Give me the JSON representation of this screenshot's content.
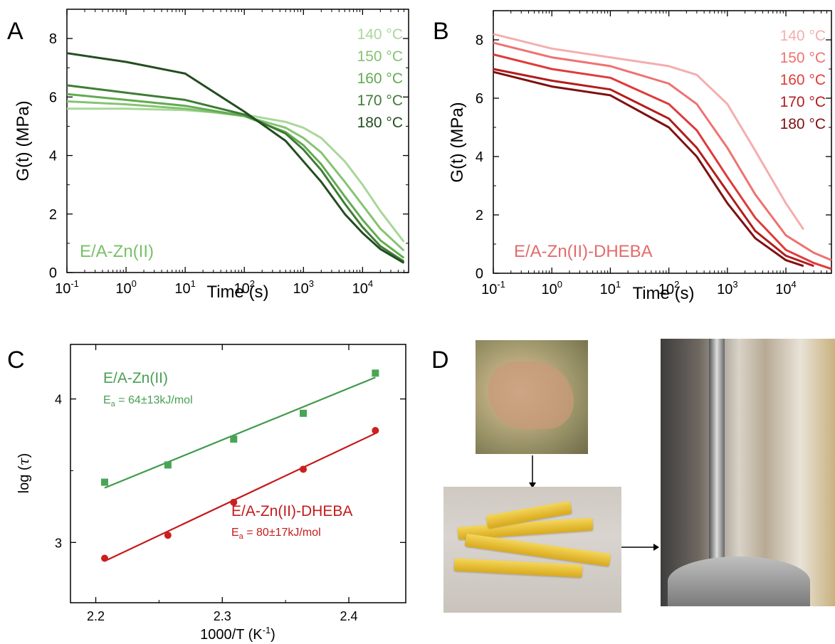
{
  "panels": {
    "A": {
      "letter": "A",
      "sample_label": "E/A-Zn(II)",
      "xlabel": "Time (s)",
      "ylabel": "G(t) (MPa)"
    },
    "B": {
      "letter": "B",
      "sample_label": "E/A-Zn(II)-DHEBA",
      "xlabel": "Time (s)",
      "ylabel": "G(t) (MPa)"
    },
    "C": {
      "letter": "C",
      "xlabel": "1000/T (K",
      "xlabel_sup": "-1",
      "xlabel_end": ")",
      "ylabel_pre": "log (",
      "ylabel_sym": "τ",
      "ylabel_post": ")",
      "annot1_name": "E/A-Zn(II)",
      "annot1_ea": "E",
      "annot1_sub": "a",
      "annot1_val": " = 64±13kJ/mol",
      "annot2_name": "E/A-Zn(II)-DHEBA",
      "annot2_ea": "E",
      "annot2_sub": "a",
      "annot2_val": " = 80±17kJ/mol"
    },
    "D": {
      "letter": "D"
    }
  },
  "colors": {
    "A": [
      "#a9d79a",
      "#84c471",
      "#62ab52",
      "#3f7d35",
      "#244d22"
    ],
    "B": [
      "#f4aeae",
      "#ee7272",
      "#df3b3b",
      "#b21d1d",
      "#7f1010"
    ],
    "green_fit": "#3f9a4a",
    "red_fit": "#c41a1a"
  },
  "chart_data": [
    {
      "panel": "A",
      "type": "line",
      "xscale": "log",
      "xlim": [
        0.1,
        60000
      ],
      "ylim": [
        0,
        9
      ],
      "xticks": [
        0.1,
        1,
        10,
        100,
        1000,
        10000
      ],
      "xtick_labels": [
        {
          "b": "10",
          "e": "-1"
        },
        {
          "b": "10",
          "e": "0"
        },
        {
          "b": "10",
          "e": "1"
        },
        {
          "b": "10",
          "e": "2"
        },
        {
          "b": "10",
          "e": "3"
        },
        {
          "b": "10",
          "e": "4"
        }
      ],
      "yticks": [
        0,
        2,
        4,
        6,
        8
      ],
      "legend_position": "top-right",
      "series": [
        {
          "name": "140 °C",
          "x": [
            0.1,
            1,
            10,
            100,
            500,
            1000,
            2000,
            5000,
            10000,
            20000,
            50000
          ],
          "y": [
            5.6,
            5.6,
            5.55,
            5.4,
            5.15,
            4.95,
            4.6,
            3.8,
            3.0,
            2.1,
            1.05
          ]
        },
        {
          "name": "150 °C",
          "x": [
            0.1,
            1,
            10,
            100,
            500,
            1000,
            2000,
            5000,
            10000,
            20000,
            50000
          ],
          "y": [
            5.85,
            5.75,
            5.6,
            5.35,
            4.95,
            4.6,
            4.1,
            3.1,
            2.3,
            1.5,
            0.75
          ]
        },
        {
          "name": "160 °C",
          "x": [
            0.1,
            1,
            10,
            100,
            500,
            1000,
            2000,
            5000,
            10000,
            20000,
            50000
          ],
          "y": [
            6.1,
            5.9,
            5.7,
            5.35,
            4.8,
            4.35,
            3.7,
            2.6,
            1.8,
            1.1,
            0.5
          ]
        },
        {
          "name": "170 °C",
          "x": [
            0.1,
            1,
            10,
            100,
            500,
            1000,
            2000,
            5000,
            10000,
            20000,
            50000
          ],
          "y": [
            6.4,
            6.15,
            5.9,
            5.4,
            4.75,
            4.2,
            3.5,
            2.35,
            1.55,
            0.9,
            0.38
          ]
        },
        {
          "name": "180 °C",
          "x": [
            0.1,
            1,
            10,
            100,
            500,
            1000,
            2000,
            5000,
            10000,
            20000,
            50000
          ],
          "y": [
            7.5,
            7.2,
            6.8,
            5.5,
            4.5,
            3.8,
            3.1,
            2.0,
            1.35,
            0.8,
            0.33
          ]
        }
      ]
    },
    {
      "panel": "B",
      "type": "line",
      "xscale": "log",
      "xlim": [
        0.1,
        60000
      ],
      "ylim": [
        0,
        9
      ],
      "xticks": [
        0.1,
        1,
        10,
        100,
        1000,
        10000
      ],
      "xtick_labels": [
        {
          "b": "10",
          "e": "-1"
        },
        {
          "b": "10",
          "e": "0"
        },
        {
          "b": "10",
          "e": "1"
        },
        {
          "b": "10",
          "e": "2"
        },
        {
          "b": "10",
          "e": "3"
        },
        {
          "b": "10",
          "e": "4"
        }
      ],
      "yticks": [
        0,
        2,
        4,
        6,
        8
      ],
      "legend_position": "top-right",
      "series": [
        {
          "name": "140 °C",
          "x": [
            0.1,
            1,
            10,
            100,
            300,
            1000,
            3000,
            10000,
            20000
          ],
          "y": [
            8.2,
            7.7,
            7.4,
            7.1,
            6.8,
            5.8,
            4.2,
            2.4,
            1.5
          ]
        },
        {
          "name": "150 °C",
          "x": [
            0.1,
            1,
            10,
            100,
            300,
            1000,
            3000,
            10000,
            30000,
            60000
          ],
          "y": [
            7.9,
            7.4,
            7.1,
            6.5,
            5.8,
            4.3,
            2.7,
            1.3,
            0.7,
            0.45
          ]
        },
        {
          "name": "160 °C",
          "x": [
            0.1,
            1,
            10,
            100,
            300,
            1000,
            3000,
            10000,
            30000,
            60000
          ],
          "y": [
            7.5,
            7.0,
            6.7,
            5.8,
            4.9,
            3.3,
            1.9,
            0.8,
            0.35,
            0.15
          ]
        },
        {
          "name": "170 °C",
          "x": [
            0.1,
            1,
            10,
            100,
            300,
            1000,
            3000,
            10000,
            30000
          ],
          "y": [
            7.0,
            6.6,
            6.3,
            5.3,
            4.3,
            2.8,
            1.45,
            0.6,
            0.25
          ]
        },
        {
          "name": "180 °C",
          "x": [
            0.1,
            1,
            10,
            100,
            300,
            1000,
            3000,
            10000,
            20000
          ],
          "y": [
            6.9,
            6.4,
            6.1,
            5.0,
            4.0,
            2.4,
            1.2,
            0.45,
            0.25
          ]
        }
      ]
    },
    {
      "panel": "C",
      "type": "scatter",
      "xlim": [
        2.18,
        2.445
      ],
      "ylim": [
        2.58,
        4.38
      ],
      "xticks": [
        2.2,
        2.3,
        2.4
      ],
      "xtick_labels": [
        "2.2",
        "2.3",
        "2.4"
      ],
      "yticks": [
        3,
        4
      ],
      "ytick_labels": [
        "3",
        "4"
      ],
      "series": [
        {
          "name": "E/A-Zn(II)",
          "marker": "square",
          "x": [
            2.207,
            2.257,
            2.309,
            2.364,
            2.421
          ],
          "y": [
            3.42,
            3.54,
            3.72,
            3.9,
            4.18
          ],
          "fit": [
            [
              2.207,
              3.38
            ],
            [
              2.421,
              4.15
            ]
          ]
        },
        {
          "name": "E/A-Zn(II)-DHEBA",
          "marker": "circle",
          "x": [
            2.207,
            2.257,
            2.309,
            2.364,
            2.421
          ],
          "y": [
            2.89,
            3.05,
            3.28,
            3.51,
            3.78
          ],
          "fit": [
            [
              2.207,
              2.87
            ],
            [
              2.421,
              3.76
            ]
          ]
        }
      ]
    }
  ]
}
